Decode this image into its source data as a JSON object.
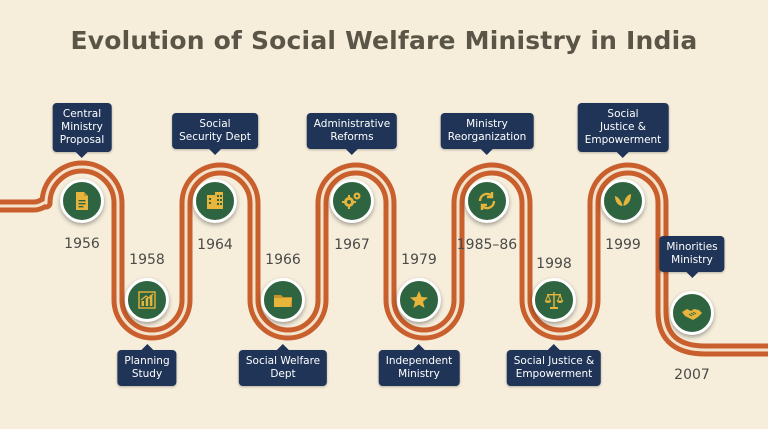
{
  "title": "Evolution of Social Welfare Ministry in India",
  "colors": {
    "background": "#f6eedb",
    "path": "#c85f2c",
    "node": "#2f6440",
    "icon": "#e7b43c",
    "label_bg": "#1f3457"
  },
  "milestones": [
    {
      "year": "1956",
      "label": "Central\nMinistry\nProposal",
      "icon": "document-icon",
      "side": "top"
    },
    {
      "year": "1958",
      "label": "Planning\nStudy",
      "icon": "bar-chart-icon",
      "side": "bottom"
    },
    {
      "year": "1964",
      "label": "Social\nSecurity Dept",
      "icon": "building-icon",
      "side": "top"
    },
    {
      "year": "1966",
      "label": "Social Welfare\nDept",
      "icon": "folder-icon",
      "side": "bottom"
    },
    {
      "year": "1967",
      "label": "Administrative\nReforms",
      "icon": "gears-icon",
      "side": "top"
    },
    {
      "year": "1979",
      "label": "Independent\nMinistry",
      "icon": "star-icon",
      "side": "bottom"
    },
    {
      "year": "1985–86",
      "label": "Ministry\nReorganization",
      "icon": "refresh-icon",
      "side": "top"
    },
    {
      "year": "1998",
      "label": "Social Justice &\nEmpowerment",
      "icon": "scales-icon",
      "side": "bottom"
    },
    {
      "year": "1999",
      "label": "Social\nJustice &\nEmpowerment",
      "icon": "leaves-icon",
      "side": "top"
    },
    {
      "year": "2007",
      "label": "Minorities\nMinistry",
      "icon": "handshake-icon",
      "side": "bottom"
    }
  ]
}
